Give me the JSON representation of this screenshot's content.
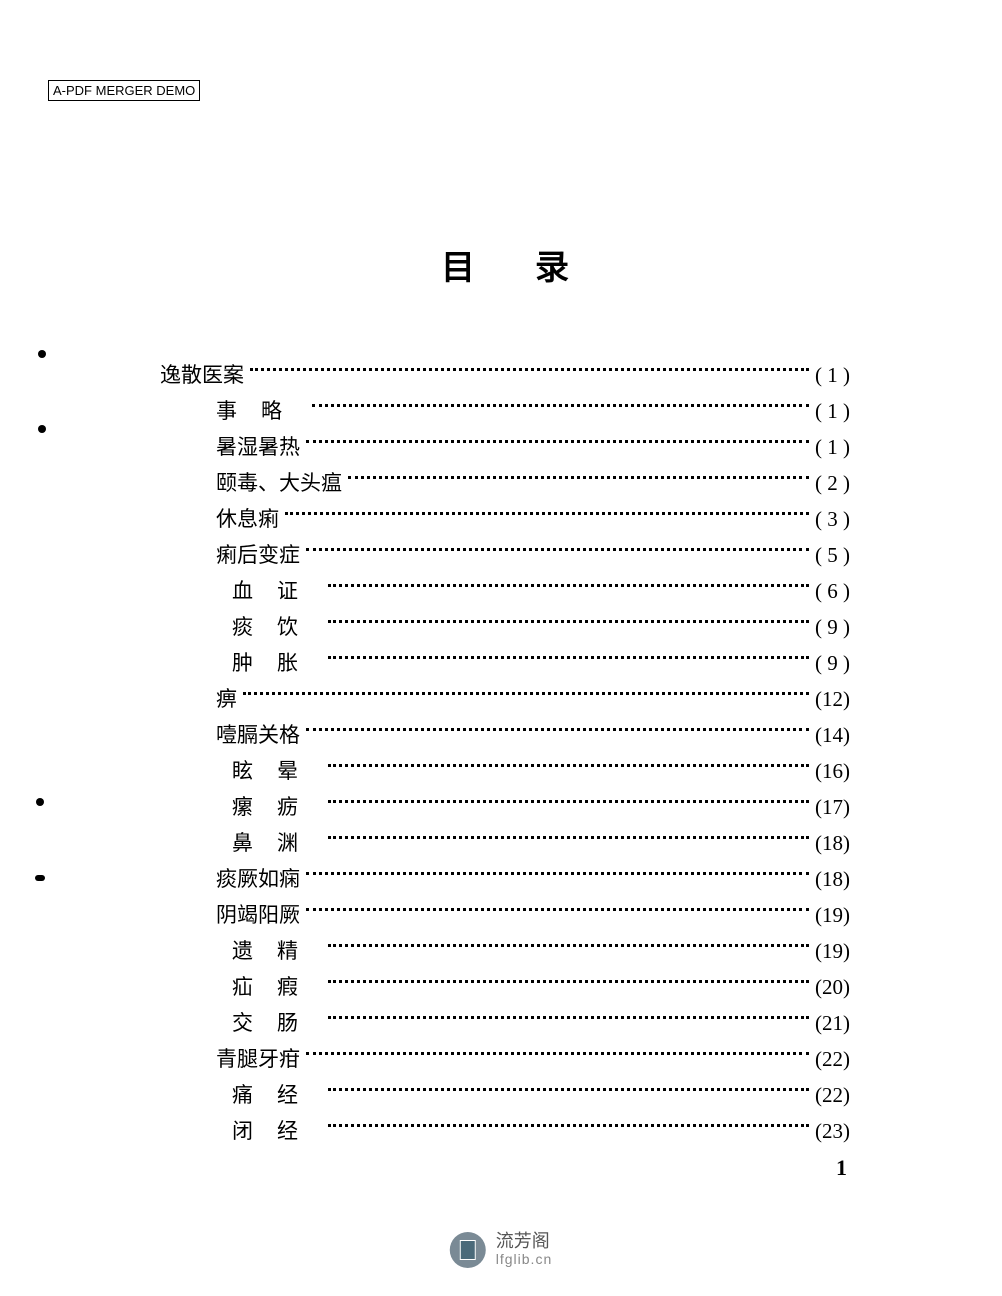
{
  "watermark": "A-PDF MERGER DEMO",
  "title": "目录",
  "toc_entries": [
    {
      "label": "逸散医案",
      "page": "( 1 )",
      "level": 0,
      "spaced": false
    },
    {
      "label": "事略",
      "page": "( 1 )",
      "level": 1,
      "spaced": true
    },
    {
      "label": "暑湿暑热",
      "page": "( 1 )",
      "level": 1,
      "spaced": false
    },
    {
      "label": "颐毒、大头瘟",
      "page": "( 2 )",
      "level": 1,
      "spaced": false
    },
    {
      "label": "休息痢",
      "page": "( 3 )",
      "level": 1,
      "spaced": false
    },
    {
      "label": "痢后变症",
      "page": "( 5 )",
      "level": 1,
      "spaced": false
    },
    {
      "label": "血证",
      "page": "( 6 )",
      "level": 2,
      "spaced": true
    },
    {
      "label": "痰饮",
      "page": "( 9 )",
      "level": 2,
      "spaced": true
    },
    {
      "label": "肿胀",
      "page": "( 9 )",
      "level": 2,
      "spaced": true
    },
    {
      "label": "痹",
      "page": "(12)",
      "level": 1,
      "spaced": false
    },
    {
      "label": "噎膈关格",
      "page": "(14)",
      "level": 1,
      "spaced": false
    },
    {
      "label": "眩晕",
      "page": "(16)",
      "level": 2,
      "spaced": true
    },
    {
      "label": "瘰疬",
      "page": "(17)",
      "level": 2,
      "spaced": true
    },
    {
      "label": "鼻渊",
      "page": "(18)",
      "level": 2,
      "spaced": true
    },
    {
      "label": "痰厥如痫",
      "page": "(18)",
      "level": 1,
      "spaced": false
    },
    {
      "label": "阴竭阳厥",
      "page": "(19)",
      "level": 1,
      "spaced": false
    },
    {
      "label": "遗精",
      "page": "(19)",
      "level": 2,
      "spaced": true
    },
    {
      "label": "疝瘕",
      "page": "(20)",
      "level": 2,
      "spaced": true
    },
    {
      "label": "交肠",
      "page": "(21)",
      "level": 2,
      "spaced": true
    },
    {
      "label": "青腿牙疳",
      "page": "(22)",
      "level": 1,
      "spaced": false
    },
    {
      "label": "痛经",
      "page": "(22)",
      "level": 2,
      "spaced": true
    },
    {
      "label": "闭经",
      "page": "(23)",
      "level": 2,
      "spaced": true
    }
  ],
  "page_number": "1",
  "footer": {
    "cn": "流芳阁",
    "en": "lfglib.cn"
  },
  "colors": {
    "text": "#000000",
    "background": "#ffffff",
    "logo_bg": "#7a8a95",
    "logo_book": "#4a6a7a",
    "footer_cn": "#555555",
    "footer_en": "#888888"
  },
  "typography": {
    "title_fontsize": 34,
    "entry_fontsize": 21,
    "page_num_fontsize": 22,
    "watermark_fontsize": 13
  }
}
